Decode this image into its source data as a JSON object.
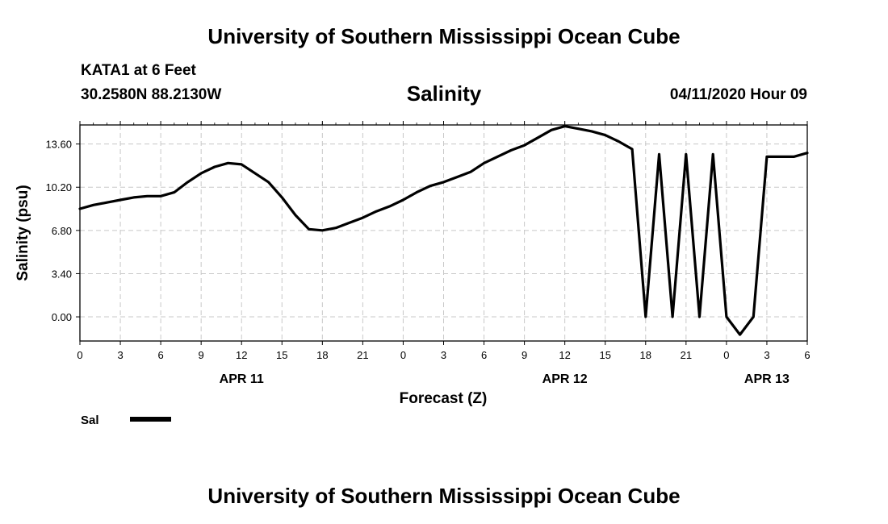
{
  "header": {
    "institution": "University of Southern Mississippi Ocean Cube",
    "station": "KATA1 at 6 Feet",
    "coordinates": "30.2580N 88.2130W",
    "issued": "04/11/2020 Hour 09"
  },
  "footer": {
    "institution": "University of Southern Mississippi Ocean Cube"
  },
  "chart_data": {
    "type": "line",
    "title": "Salinity",
    "xlabel": "Forecast (Z)",
    "ylabel": "Salinity (psu)",
    "xlim": [
      0,
      54
    ],
    "ylim": [
      -1.9,
      15.1
    ],
    "grid": true,
    "x_ticks": [
      {
        "v": 0,
        "label": "0"
      },
      {
        "v": 3,
        "label": "3"
      },
      {
        "v": 6,
        "label": "6"
      },
      {
        "v": 9,
        "label": "9"
      },
      {
        "v": 12,
        "label": "12"
      },
      {
        "v": 15,
        "label": "15"
      },
      {
        "v": 18,
        "label": "18"
      },
      {
        "v": 21,
        "label": "21"
      },
      {
        "v": 24,
        "label": "0"
      },
      {
        "v": 27,
        "label": "3"
      },
      {
        "v": 30,
        "label": "6"
      },
      {
        "v": 33,
        "label": "9"
      },
      {
        "v": 36,
        "label": "12"
      },
      {
        "v": 39,
        "label": "15"
      },
      {
        "v": 42,
        "label": "18"
      },
      {
        "v": 45,
        "label": "21"
      },
      {
        "v": 48,
        "label": "0"
      },
      {
        "v": 51,
        "label": "3"
      },
      {
        "v": 54,
        "label": "6"
      }
    ],
    "y_ticks": [
      {
        "v": 0.0,
        "label": "0.00"
      },
      {
        "v": 3.4,
        "label": "3.40"
      },
      {
        "v": 6.8,
        "label": "6.80"
      },
      {
        "v": 10.2,
        "label": "10.20"
      },
      {
        "v": 13.6,
        "label": "13.60"
      }
    ],
    "date_labels": [
      {
        "v": 12,
        "label": "APR 11"
      },
      {
        "v": 36,
        "label": "APR 12"
      },
      {
        "v": 51,
        "label": "APR 13"
      }
    ],
    "legend": {
      "position": "bottom-left"
    },
    "series": [
      {
        "name": "Sal",
        "color": "#000000",
        "x": [
          0,
          1,
          2,
          3,
          4,
          5,
          6,
          7,
          8,
          9,
          10,
          11,
          12,
          13,
          14,
          15,
          16,
          17,
          18,
          19,
          20,
          21,
          22,
          23,
          24,
          25,
          26,
          27,
          28,
          29,
          30,
          31,
          32,
          33,
          34,
          35,
          36,
          37,
          38,
          39,
          40,
          41,
          42,
          43,
          44,
          45,
          46,
          47,
          48,
          49,
          50,
          51,
          52,
          53,
          54
        ],
        "y": [
          8.5,
          8.8,
          9.0,
          9.2,
          9.4,
          9.5,
          9.5,
          9.8,
          10.6,
          11.3,
          11.8,
          12.1,
          12.0,
          11.3,
          10.6,
          9.4,
          8.0,
          6.9,
          6.8,
          7.0,
          7.4,
          7.8,
          8.3,
          8.7,
          9.2,
          9.8,
          10.3,
          10.6,
          11.0,
          11.4,
          12.1,
          12.6,
          13.1,
          13.5,
          14.1,
          14.7,
          15.0,
          14.8,
          14.6,
          14.3,
          13.8,
          13.2,
          0.0,
          12.8,
          0.0,
          12.8,
          0.0,
          12.8,
          0.0,
          -1.4,
          0.0,
          12.6,
          12.6,
          12.6,
          12.9
        ]
      }
    ]
  }
}
